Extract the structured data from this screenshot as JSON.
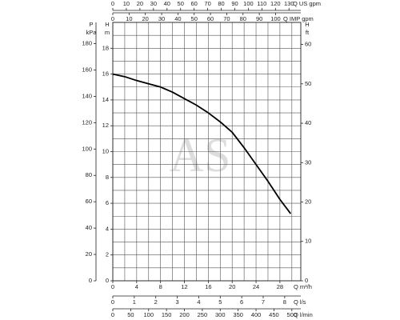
{
  "chart_data": {
    "type": "line",
    "watermark": "AS",
    "x": [
      0,
      2,
      4,
      6,
      8,
      10,
      12,
      14,
      16,
      18,
      20,
      22,
      24,
      26,
      28,
      29.8
    ],
    "series": [
      {
        "color": "#000000",
        "values": [
          16,
          15.8,
          15.5,
          15.25,
          15,
          14.6,
          14.1,
          13.6,
          13,
          12.3,
          11.5,
          10.3,
          9,
          7.7,
          6.3,
          5.2
        ]
      }
    ],
    "xlim": [
      0,
      31.5
    ],
    "ylim": [
      0,
      20
    ],
    "grid_x": [
      0,
      2,
      4,
      6,
      8,
      10,
      12,
      14,
      16,
      18,
      20,
      22,
      24,
      26,
      28,
      30
    ],
    "grid_y": [
      0,
      1,
      2,
      3,
      4,
      5,
      6,
      7,
      8,
      9,
      10,
      11,
      12,
      13,
      14,
      15,
      16,
      17,
      18,
      19,
      20
    ],
    "y_m": {
      "label": "H",
      "unit": "m",
      "lim": [
        0,
        20
      ],
      "ticks": [
        0,
        2,
        4,
        6,
        8,
        10,
        12,
        14,
        16,
        18
      ]
    },
    "y_kpa": {
      "label": "P",
      "unit": "kPa",
      "lim": [
        0,
        196.1
      ],
      "ticks": [
        0,
        20,
        40,
        60,
        80,
        100,
        120,
        140,
        160,
        180
      ]
    },
    "y_ft": {
      "label": "H",
      "unit": "ft",
      "lim": [
        0,
        65.6
      ],
      "ticks": [
        0,
        10,
        20,
        30,
        40,
        50,
        60
      ]
    },
    "x_m3h": {
      "label": "Q m³/h",
      "lim": [
        0,
        31.5
      ],
      "ticks": [
        0,
        4,
        8,
        12,
        16,
        20,
        24,
        28
      ]
    },
    "x_ls": {
      "label": "Q l/s",
      "lim": [
        0,
        8.75
      ],
      "ticks": [
        0,
        1,
        2,
        3,
        4,
        5,
        6,
        7,
        8
      ]
    },
    "x_lmin": {
      "label": "Q l/min",
      "lim": [
        0,
        525
      ],
      "ticks": [
        0,
        50,
        100,
        150,
        200,
        250,
        300,
        350,
        400,
        450,
        500
      ]
    },
    "x_usgpm": {
      "label": "Q US gpm",
      "lim": [
        0,
        138.7
      ],
      "ticks": [
        0,
        10,
        20,
        30,
        40,
        50,
        60,
        70,
        80,
        90,
        100,
        110,
        120,
        130
      ]
    },
    "x_impgpm": {
      "label": "Q IMP gpm",
      "lim": [
        0,
        115.5
      ],
      "ticks": [
        0,
        10,
        20,
        30,
        40,
        50,
        60,
        70,
        80,
        90,
        100
      ]
    }
  }
}
